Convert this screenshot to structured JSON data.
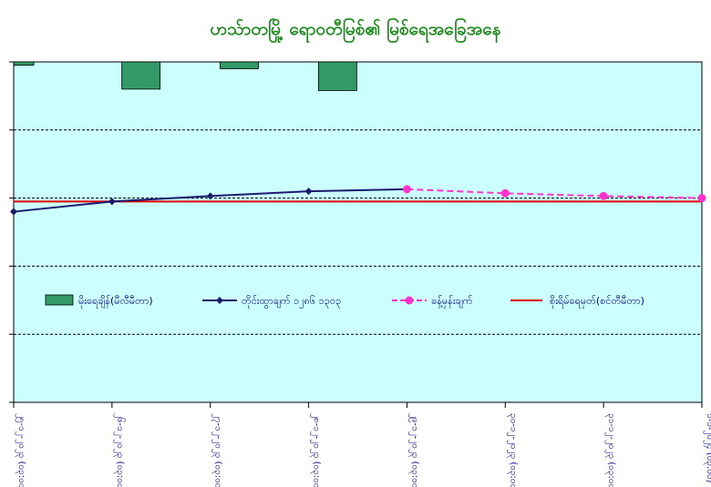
{
  "chart_data": {
    "type": "line",
    "title": "ဟသ်ာတမြို့ ရောဝတီမြစ်၏ မြစ်ရေအခြေအနေ",
    "xlabel": "",
    "ylabel": "",
    "categories": [
      "၂၅-၁၂-၂၀၂၃ (၀၃:၀၀)",
      "၂၆-၁၂-၂၀၂၃ (၀၃:၀၀)",
      "၂၇-၁၂-၂၀၂၃ (၀၃:၀၀)",
      "၂၈-၁၂-၂၀၂၃ (၀၃:၀၀)",
      "၂၉-၁၂-၂၀၂၃ (၀၃:၀၀)",
      "၃၀-၁၂-၂၀၂၃ (၀၃:၀၀)",
      "၃၁-၁၂-၂၀၂၃ (၀၃:၀၀)",
      "၁-၁-၂၀၂၄ (၀၃:၀၀)"
    ],
    "ylim": [
      -5,
      0
    ],
    "grid": true,
    "legend_position": "middle",
    "series": [
      {
        "name": "မိုးရေချိန်(မီလီမီတာ)",
        "kind": "bar",
        "color": "#339966",
        "values": [
          -0.05,
          -0.4,
          -0.1,
          -0.42,
          null,
          null,
          null,
          null
        ]
      },
      {
        "name": "တိုင်းထွာချက် ၁၂၈၆ ၁၃၀၃",
        "kind": "line",
        "color": "#1a1a6e",
        "marker": "diamond",
        "values": [
          -2.2,
          -2.05,
          -1.97,
          -1.9,
          null,
          null,
          null,
          null
        ]
      },
      {
        "name": "ခန့်မှန်းချက်",
        "kind": "line",
        "dash": true,
        "color": "#ff33cc",
        "marker": "circle",
        "values": [
          null,
          null,
          null,
          -1.9,
          -1.87,
          -1.93,
          -1.97,
          -2.0
        ]
      },
      {
        "name": "စိုးရိမ်ရေမှတ်(စင်တီမီတာ)",
        "kind": "hline",
        "color": "#e00000",
        "value": -2.05
      }
    ],
    "colors": {
      "plot_bg": "#ccffff",
      "grid": "#000000",
      "title": "#1f8a1f",
      "axis_text": "#000080"
    }
  }
}
